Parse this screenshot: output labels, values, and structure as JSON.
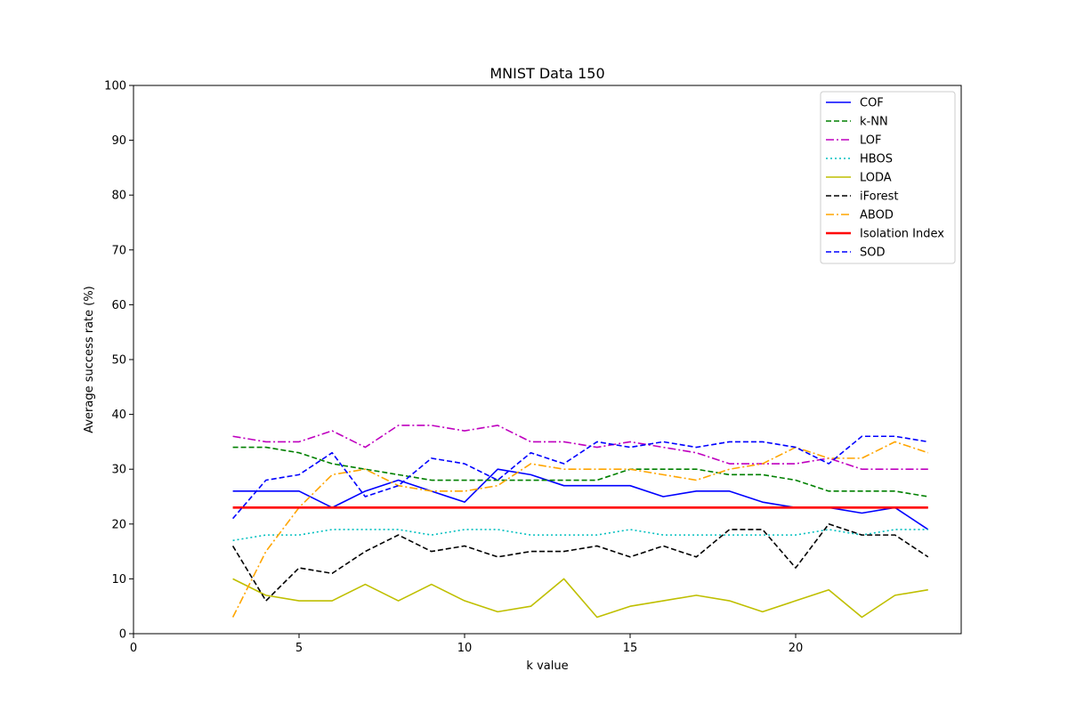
{
  "chart_data": {
    "type": "line",
    "title": "MNIST Data 150",
    "xlabel": "k value",
    "ylabel": "Average success rate (%)",
    "xlim": [
      0,
      25
    ],
    "ylim": [
      0,
      100
    ],
    "xticks": [
      0,
      5,
      10,
      15,
      20
    ],
    "yticks": [
      0,
      10,
      20,
      30,
      40,
      50,
      60,
      70,
      80,
      90,
      100
    ],
    "grid": false,
    "legend_position": "top-right",
    "x": [
      3,
      4,
      5,
      6,
      7,
      8,
      9,
      10,
      11,
      12,
      13,
      14,
      15,
      16,
      17,
      18,
      19,
      20,
      21,
      22,
      23,
      24
    ],
    "series": [
      {
        "name": "COF",
        "color": "#0000ff",
        "style": "solid",
        "values": [
          26,
          26,
          26,
          23,
          26,
          28,
          26,
          24,
          30,
          29,
          27,
          27,
          27,
          25,
          26,
          26,
          24,
          23,
          23,
          22,
          23,
          19
        ]
      },
      {
        "name": "k-NN",
        "color": "#008000",
        "style": "dashed",
        "values": [
          34,
          34,
          33,
          31,
          30,
          29,
          28,
          28,
          28,
          28,
          28,
          28,
          30,
          30,
          30,
          29,
          29,
          28,
          26,
          26,
          26,
          25
        ]
      },
      {
        "name": "LOF",
        "color": "#bf00bf",
        "style": "dashdot",
        "values": [
          36,
          35,
          35,
          37,
          34,
          38,
          38,
          37,
          38,
          35,
          35,
          34,
          35,
          34,
          33,
          31,
          31,
          31,
          32,
          30,
          30,
          30
        ]
      },
      {
        "name": "HBOS",
        "color": "#00bfbf",
        "style": "dotted",
        "values": [
          17,
          18,
          18,
          19,
          19,
          19,
          18,
          19,
          19,
          18,
          18,
          18,
          19,
          18,
          18,
          18,
          18,
          18,
          19,
          18,
          19,
          19
        ]
      },
      {
        "name": "LODA",
        "color": "#bfbf00",
        "style": "solid",
        "values": [
          10,
          7,
          6,
          6,
          9,
          6,
          9,
          6,
          4,
          5,
          10,
          3,
          5,
          6,
          7,
          6,
          4,
          6,
          8,
          3,
          7,
          8
        ]
      },
      {
        "name": "iForest",
        "color": "#000000",
        "style": "dashed",
        "values": [
          16,
          6,
          12,
          11,
          15,
          18,
          15,
          16,
          14,
          15,
          15,
          16,
          14,
          16,
          14,
          19,
          19,
          12,
          20,
          18,
          18,
          14
        ]
      },
      {
        "name": "ABOD",
        "color": "#ffa500",
        "style": "dashdot",
        "values": [
          3,
          15,
          23,
          29,
          30,
          27,
          26,
          26,
          27,
          31,
          30,
          30,
          30,
          29,
          28,
          30,
          31,
          34,
          32,
          32,
          35,
          33
        ]
      },
      {
        "name": "Isolation Index",
        "color": "#ff0000",
        "style": "solid-thick",
        "values": [
          23,
          23,
          23,
          23,
          23,
          23,
          23,
          23,
          23,
          23,
          23,
          23,
          23,
          23,
          23,
          23,
          23,
          23,
          23,
          23,
          23,
          23
        ]
      },
      {
        "name": "SOD",
        "color": "#0000ff",
        "style": "dashed",
        "values": [
          21,
          28,
          29,
          33,
          25,
          27,
          32,
          31,
          28,
          33,
          31,
          35,
          34,
          35,
          34,
          35,
          35,
          34,
          31,
          36,
          36,
          35
        ]
      }
    ]
  }
}
